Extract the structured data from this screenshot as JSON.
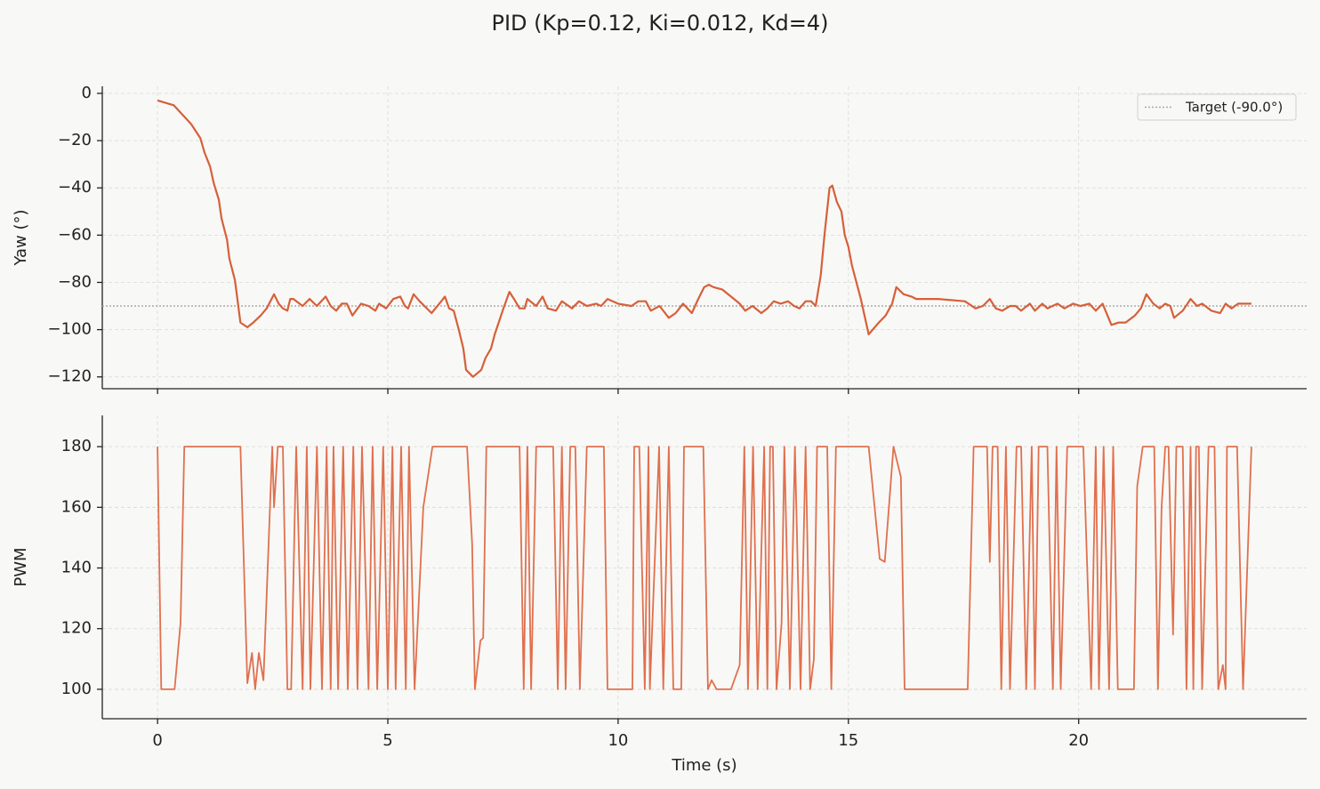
{
  "title": "PID  (Kp=0.12, Ki=0.012, Kd=4)",
  "chart_data": [
    {
      "type": "line",
      "ylabel": "Yaw (°)",
      "x": [
        0,
        0.35,
        0.54,
        0.73,
        0.93,
        1.02,
        1.14,
        1.22,
        1.33,
        1.39,
        1.51,
        1.56,
        1.68,
        1.8,
        1.95,
        2.08,
        2.24,
        2.37,
        2.53,
        2.63,
        2.72,
        2.82,
        2.88,
        2.95,
        3.15,
        3.3,
        3.46,
        3.65,
        3.76,
        3.88,
        4.0,
        4.11,
        4.23,
        4.42,
        4.58,
        4.73,
        4.81,
        4.96,
        5.12,
        5.27,
        5.37,
        5.44,
        5.56,
        5.69,
        5.95,
        6.16,
        6.24,
        6.33,
        6.43,
        6.54,
        6.64,
        6.7,
        6.85,
        7.03,
        7.12,
        7.24,
        7.32,
        7.51,
        7.64,
        7.74,
        7.86,
        7.97,
        8.03,
        8.22,
        8.36,
        8.47,
        8.65,
        8.78,
        9.0,
        9.15,
        9.32,
        9.52,
        9.63,
        9.77,
        10.0,
        10.29,
        10.44,
        10.6,
        10.71,
        10.9,
        11.1,
        11.25,
        11.41,
        11.6,
        11.74,
        11.87,
        11.97,
        12.07,
        12.26,
        12.45,
        12.64,
        12.76,
        12.92,
        13.11,
        13.24,
        13.38,
        13.53,
        13.69,
        13.82,
        13.94,
        14.07,
        14.19,
        14.29,
        14.4,
        14.48,
        14.59,
        14.65,
        14.75,
        14.85,
        14.92,
        15.0,
        15.08,
        15.27,
        15.44,
        15.66,
        15.81,
        15.95,
        16.04,
        16.2,
        16.37,
        16.47,
        16.95,
        17.53,
        17.76,
        17.92,
        18.07,
        18.2,
        18.34,
        18.51,
        18.63,
        18.75,
        18.94,
        19.05,
        19.21,
        19.32,
        19.54,
        19.69,
        19.88,
        20.04,
        20.23,
        20.37,
        20.52,
        20.71,
        20.87,
        21.02,
        21.22,
        21.35,
        21.47,
        21.62,
        21.76,
        21.88,
        21.99,
        22.07,
        22.26,
        22.43,
        22.57,
        22.68,
        22.88,
        23.07,
        23.19,
        23.32,
        23.46,
        23.75
      ],
      "series": [
        {
          "color": "#d6603a",
          "values": [
            -3,
            -5,
            -9,
            -13,
            -19,
            -25,
            -31,
            -38,
            -45,
            -53,
            -62,
            -70,
            -79,
            -97,
            -99,
            -97,
            -94,
            -91,
            -85,
            -89,
            -91,
            -92,
            -87,
            -87,
            -90,
            -87,
            -90,
            -86,
            -90,
            -92,
            -89,
            -89,
            -94,
            -89,
            -90,
            -92,
            -89,
            -91,
            -87,
            -86,
            -90,
            -91,
            -85,
            -88,
            -93,
            -88,
            -86,
            -91,
            -92,
            -100,
            -108,
            -117,
            -120,
            -117,
            -112,
            -108,
            -102,
            -91,
            -84,
            -87,
            -91,
            -91,
            -87,
            -90,
            -86,
            -91,
            -92,
            -88,
            -91,
            -88,
            -90,
            -89,
            -90,
            -87,
            -89,
            -90,
            -88,
            -88,
            -92,
            -90,
            -95,
            -93,
            -89,
            -93,
            -87,
            -82,
            -81,
            -82,
            -83,
            -86,
            -89,
            -92,
            -90,
            -93,
            -91,
            -88,
            -89,
            -88,
            -90,
            -91,
            -88,
            -88,
            -90,
            -77,
            -60,
            -40,
            -39,
            -46,
            -50,
            -60,
            -65,
            -73,
            -87,
            -102,
            -97,
            -94,
            -89,
            -82,
            -85,
            -86,
            -87,
            -87,
            -88,
            -91,
            -90,
            -87,
            -91,
            -92,
            -90,
            -90,
            -92,
            -89,
            -92,
            -89,
            -91,
            -89,
            -91,
            -89,
            -90,
            -89,
            -92,
            -89,
            -98,
            -97,
            -97,
            -94,
            -91,
            -85,
            -89,
            -91,
            -89,
            -90,
            -95,
            -92,
            -87,
            -90,
            -89,
            -92,
            -93,
            -89,
            -91,
            -89,
            -89
          ]
        }
      ],
      "reference_line": {
        "label": "Target (-90.0°)",
        "value": -90,
        "color": "#aaaaaa"
      },
      "legend": "upper right",
      "xlim": [
        -1.2,
        24.95
      ],
      "xticks": [
        0,
        5,
        10,
        15,
        20
      ],
      "ylim": [
        -125,
        3
      ],
      "yticks": [
        0,
        {
          "value": -20,
          "label": "−20"
        },
        {
          "value": -40,
          "label": "−40"
        },
        {
          "value": -60,
          "label": "−60"
        },
        {
          "value": -80,
          "label": "−80"
        },
        {
          "value": -100,
          "label": "−100"
        },
        {
          "value": -120,
          "label": "−120"
        }
      ],
      "grid": true
    },
    {
      "type": "line",
      "ylabel": "PWM",
      "xlabel": "Time (s)",
      "x": [
        0,
        0.08,
        0.37,
        0.5,
        0.58,
        1.8,
        1.95,
        2.05,
        2.12,
        2.2,
        2.3,
        2.49,
        2.53,
        2.61,
        2.72,
        2.82,
        2.9,
        3.01,
        3.15,
        3.24,
        3.32,
        3.46,
        3.57,
        3.67,
        3.76,
        3.82,
        3.92,
        4.03,
        4.13,
        4.25,
        4.34,
        4.44,
        4.58,
        4.67,
        4.77,
        4.9,
        5.0,
        5.1,
        5.17,
        5.29,
        5.39,
        5.46,
        5.58,
        5.77,
        5.97,
        6.72,
        6.83,
        6.89,
        7.01,
        7.07,
        7.14,
        7.86,
        7.95,
        8.03,
        8.11,
        8.22,
        8.59,
        8.69,
        8.78,
        8.86,
        8.96,
        9.07,
        9.17,
        9.32,
        9.69,
        9.77,
        10.31,
        10.35,
        10.46,
        10.58,
        10.66,
        10.69,
        10.79,
        10.89,
        10.98,
        11.1,
        11.2,
        11.37,
        11.43,
        11.85,
        11.95,
        12.03,
        12.14,
        12.45,
        12.64,
        12.74,
        12.82,
        12.93,
        13.03,
        13.17,
        13.24,
        13.3,
        13.36,
        13.44,
        13.55,
        13.61,
        13.73,
        13.84,
        13.96,
        14.07,
        14.17,
        14.25,
        14.32,
        14.54,
        14.63,
        14.73,
        15.44,
        15.68,
        15.79,
        15.98,
        16.14,
        16.22,
        17.59,
        17.72,
        18.01,
        18.07,
        18.13,
        18.24,
        18.32,
        18.42,
        18.51,
        18.65,
        18.75,
        18.86,
        18.98,
        19.05,
        19.13,
        19.32,
        19.44,
        19.52,
        19.61,
        19.75,
        20.1,
        20.27,
        20.37,
        20.44,
        20.54,
        20.66,
        20.75,
        20.85,
        20.89,
        21.2,
        21.27,
        21.39,
        21.64,
        21.72,
        21.8,
        21.88,
        21.95,
        22.05,
        22.12,
        22.26,
        22.34,
        22.43,
        22.49,
        22.55,
        22.61,
        22.68,
        22.82,
        22.95,
        23.03,
        23.13,
        23.19,
        23.22,
        23.44,
        23.57,
        23.75
      ],
      "series": [
        {
          "color": "#e0704e",
          "values": [
            180,
            100,
            100,
            122,
            180,
            180,
            102,
            112,
            100,
            112,
            103,
            180,
            160,
            180,
            180,
            100,
            100,
            180,
            100,
            180,
            100,
            180,
            100,
            180,
            100,
            180,
            100,
            180,
            100,
            180,
            100,
            180,
            100,
            180,
            100,
            180,
            100,
            180,
            100,
            180,
            100,
            180,
            100,
            160,
            180,
            180,
            148,
            100,
            116,
            117,
            180,
            180,
            100,
            180,
            100,
            180,
            180,
            100,
            180,
            100,
            180,
            180,
            100,
            180,
            180,
            100,
            100,
            180,
            180,
            100,
            180,
            100,
            140,
            180,
            100,
            180,
            100,
            100,
            180,
            180,
            100,
            103,
            100,
            100,
            108,
            180,
            100,
            180,
            100,
            180,
            100,
            180,
            180,
            100,
            122,
            180,
            100,
            180,
            100,
            180,
            100,
            110,
            180,
            180,
            100,
            180,
            180,
            143,
            142,
            180,
            170,
            100,
            100,
            180,
            180,
            142,
            180,
            180,
            100,
            180,
            100,
            180,
            180,
            100,
            180,
            100,
            180,
            180,
            100,
            180,
            100,
            180,
            180,
            100,
            180,
            100,
            180,
            100,
            180,
            100,
            100,
            100,
            167,
            180,
            180,
            100,
            160,
            180,
            180,
            118,
            180,
            180,
            100,
            180,
            100,
            180,
            180,
            100,
            180,
            180,
            100,
            108,
            100,
            180,
            180,
            100,
            180
          ]
        }
      ],
      "xlim": [
        -1.2,
        24.95
      ],
      "xticks": [
        0,
        5,
        10,
        15,
        20
      ],
      "ylim": [
        90.3,
        190.3
      ],
      "yticks": [
        100,
        120,
        140,
        160,
        180
      ],
      "grid": true
    }
  ]
}
